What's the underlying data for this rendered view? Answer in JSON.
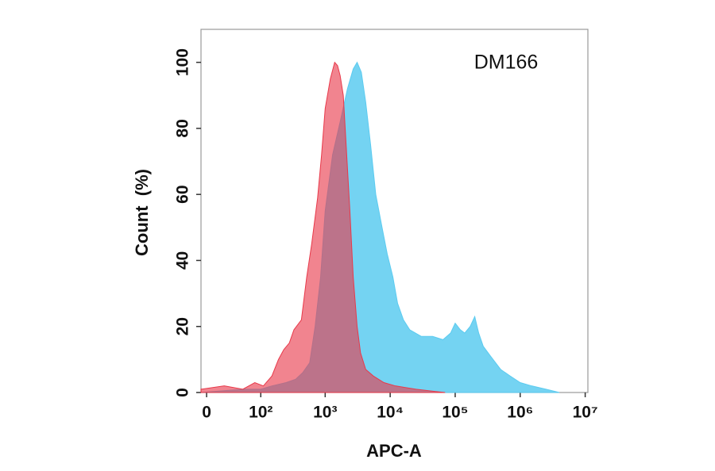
{
  "chart_data": {
    "type": "area",
    "annotation": "DM166",
    "x_label": "APC-A",
    "y_label": "Count  (%)",
    "xscale": "logicle",
    "xlim": [
      -6,
      11000000
    ],
    "ylim": [
      0,
      110
    ],
    "xticks": [
      0,
      {
        "value": 100,
        "label": "10²"
      },
      {
        "value": 1000,
        "label": "10³"
      },
      {
        "value": 10000,
        "label": "10⁴"
      },
      {
        "value": 100000,
        "label": "10⁵"
      },
      {
        "value": 1000000,
        "label": "10⁶"
      },
      {
        "value": 10000000,
        "label": "10⁷"
      }
    ],
    "yticks": [
      0,
      20,
      40,
      60,
      80,
      100
    ],
    "grid": false,
    "series": [
      {
        "color": "#5ccbf0",
        "x": [
          -6,
          50,
          100,
          150,
          250,
          350,
          450,
          577,
          700,
          850,
          1000,
          1300,
          1700,
          2200,
          2700,
          3100,
          3600,
          4200,
          5000,
          6000,
          7500,
          9000,
          11000,
          13000,
          16000,
          20000,
          30000,
          45000,
          65000,
          85000,
          100000,
          120000,
          140000,
          170000,
          200000,
          230000,
          270000,
          350000,
          500000,
          700000,
          1000000,
          1500000,
          2500000,
          4000000
        ],
        "values": [
          0,
          1,
          1,
          2,
          3,
          4,
          6,
          9,
          20,
          35,
          55,
          72,
          82,
          92,
          98,
          100,
          97,
          88,
          75,
          60,
          50,
          42,
          35,
          27,
          22,
          19,
          17,
          17,
          16,
          18,
          21,
          19,
          18,
          20,
          23,
          18,
          14,
          11,
          7,
          5,
          3,
          2,
          1,
          0
        ]
      },
      {
        "color": "#e8394a",
        "x": [
          -6,
          20,
          50,
          80,
          110,
          150,
          190,
          230,
          280,
          330,
          430,
          520,
          620,
          765,
          880,
          1000,
          1200,
          1400,
          1550,
          1700,
          1900,
          2100,
          2400,
          2700,
          3100,
          3500,
          4200,
          5500,
          8000,
          12000,
          25000,
          50000,
          70000
        ],
        "values": [
          1,
          2,
          1,
          3,
          2,
          5,
          10,
          13,
          15,
          19,
          22,
          35,
          45,
          59,
          72,
          86,
          95,
          100,
          99,
          96,
          90,
          75,
          55,
          35,
          20,
          12,
          7,
          5,
          3,
          2,
          1,
          0.3,
          0
        ]
      }
    ]
  }
}
